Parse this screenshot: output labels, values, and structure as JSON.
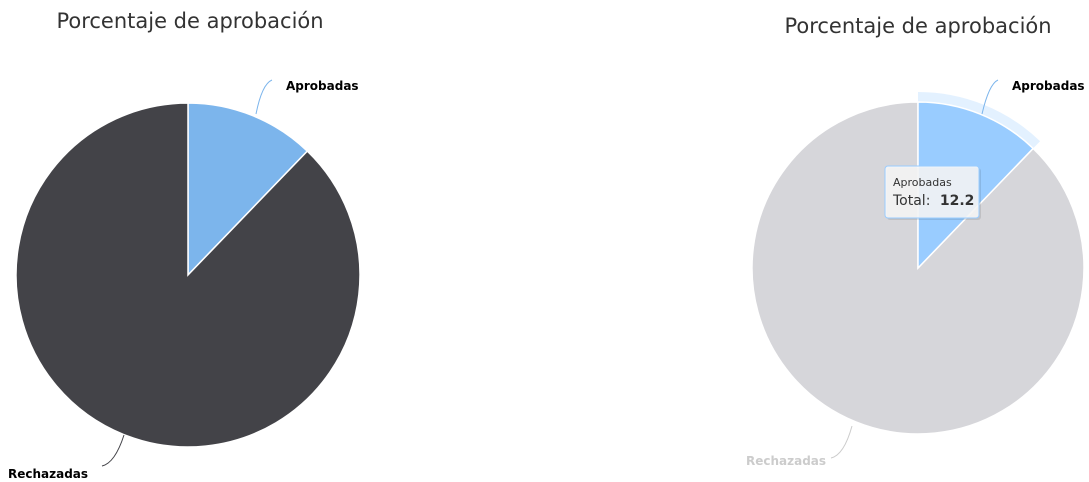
{
  "chart_data": [
    {
      "type": "pie",
      "title": "Porcentaje de aprobación",
      "slices": [
        {
          "name": "Aprobadas",
          "value": 12.2,
          "color": "#7cb5ec"
        },
        {
          "name": "Rechazadas",
          "value": 87.8,
          "color": "#434348"
        }
      ],
      "state": "normal"
    },
    {
      "type": "pie",
      "title": "Porcentaje de aprobación",
      "slices": [
        {
          "name": "Aprobadas",
          "value": 12.2,
          "color": "#99ccff"
        },
        {
          "name": "Rechazadas",
          "value": 87.8,
          "color": "#d6d6da"
        }
      ],
      "state": "hover",
      "hovered_slice": "Aprobadas",
      "inactive_label_color": "#cccccc",
      "tooltip": {
        "series": "Aprobadas",
        "label": "Total:",
        "value": "12.2"
      }
    }
  ]
}
